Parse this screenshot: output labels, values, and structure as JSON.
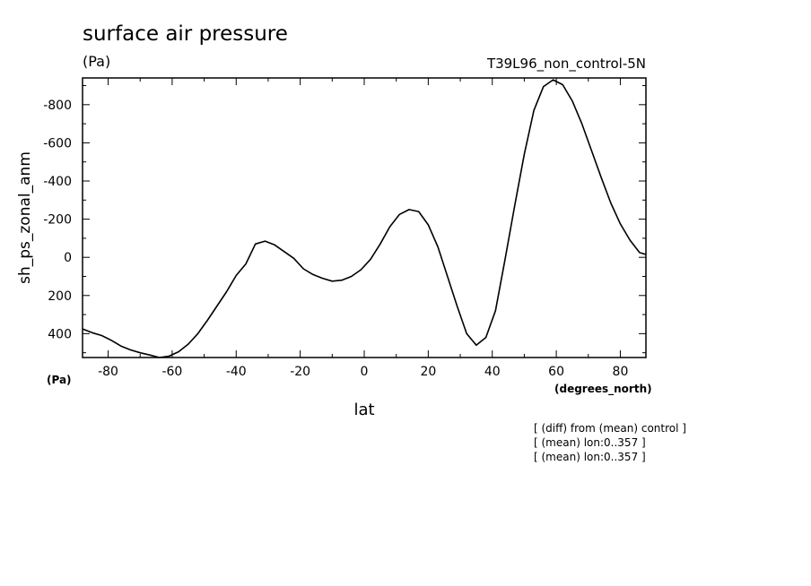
{
  "chart_data": {
    "type": "line",
    "title": "surface air pressure",
    "units_label": "(Pa)",
    "run_label": "T39L96_non_control-5N",
    "xlabel": "lat",
    "xunits": "(degrees_north)",
    "ylabel": "sh_ps_zonal_anm",
    "yunits": "(Pa)",
    "xlim": [
      -88,
      88
    ],
    "ylim": [
      525,
      -940
    ],
    "y_inverted": true,
    "grid": false,
    "x_ticks": [
      -80,
      -60,
      -40,
      -20,
      0,
      20,
      40,
      60,
      80
    ],
    "x_tick_labels": [
      "-80",
      "-60",
      "-40",
      "-20",
      "0",
      "20",
      "40",
      "60",
      "80"
    ],
    "y_ticks": [
      -800,
      -600,
      -400,
      -200,
      0,
      200,
      400
    ],
    "y_tick_labels": [
      "-800",
      "-600",
      "-400",
      "-200",
      "0",
      "200",
      "400"
    ],
    "x": [
      -88,
      -85,
      -82,
      -79,
      -76,
      -73,
      -70,
      -67,
      -64,
      -61,
      -58,
      -55,
      -52,
      -49,
      -46,
      -43,
      -40,
      -37,
      -34,
      -31,
      -28,
      -25,
      -22,
      -19,
      -16,
      -13,
      -10,
      -7,
      -4,
      -1,
      2,
      5,
      8,
      11,
      14,
      17,
      20,
      23,
      26,
      29,
      32,
      35,
      38,
      41,
      44,
      47,
      50,
      53,
      56,
      59,
      62,
      65,
      68,
      71,
      74,
      77,
      80,
      83,
      86,
      88
    ],
    "values": [
      375,
      395,
      410,
      435,
      465,
      485,
      500,
      512,
      525,
      518,
      495,
      455,
      400,
      330,
      255,
      180,
      95,
      35,
      -70,
      -85,
      -65,
      -30,
      5,
      60,
      90,
      110,
      125,
      120,
      100,
      65,
      10,
      -70,
      -160,
      -225,
      -250,
      -240,
      -170,
      -55,
      100,
      255,
      400,
      460,
      420,
      280,
      10,
      -270,
      -540,
      -770,
      -895,
      -930,
      -905,
      -820,
      -700,
      -560,
      -420,
      -285,
      -175,
      -90,
      -25,
      -15
    ]
  },
  "footer_notes": [
    "[ (diff) from (mean) control ]",
    "[ (mean) lon:0..357 ]",
    "[ (mean) lon:0..357 ]"
  ]
}
